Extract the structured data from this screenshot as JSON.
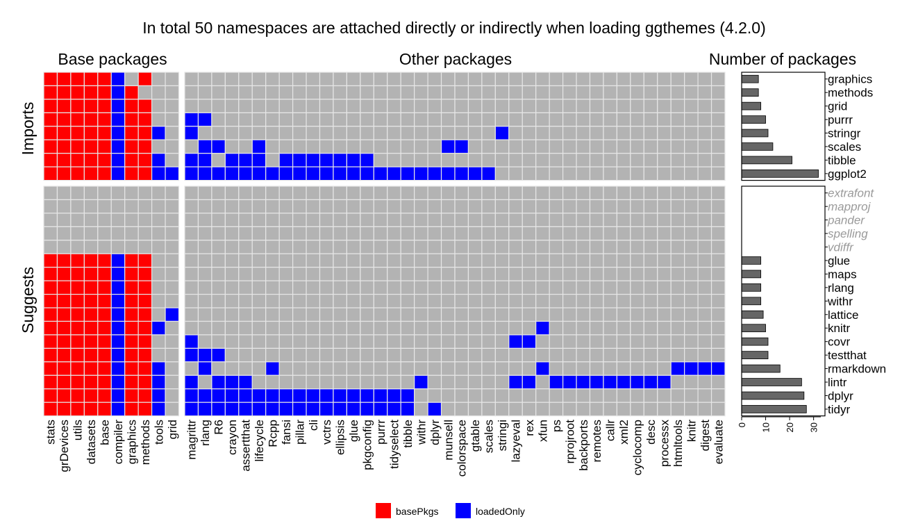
{
  "chart_data": {
    "type": "heatmap",
    "title": "In total 50 namespaces are attached directly or indirectly when loading ggthemes (4.2.0)",
    "panels": {
      "base": "Base packages",
      "other": "Other packages",
      "count": "Number of packages"
    },
    "row_groups": [
      "Imports",
      "Suggests"
    ],
    "base_packages": [
      "stats",
      "grDevices",
      "utils",
      "datasets",
      "base",
      "compiler",
      "graphics",
      "methods",
      "tools",
      "grid"
    ],
    "other_packages": [
      "magrittr",
      "rlang",
      "R6",
      "crayon",
      "assertthat",
      "lifecycle",
      "Rcpp",
      "fansi",
      "pillar",
      "cli",
      "vctrs",
      "ellipsis",
      "glue",
      "pkgconfig",
      "purrr",
      "tidyselect",
      "tibble",
      "withr",
      "dplyr",
      "munsell",
      "colorspace",
      "gtable",
      "scales",
      "stringi",
      "lazyeval",
      "rex",
      "xfun",
      "ps",
      "rprojroot",
      "backports",
      "remotes",
      "callr",
      "xml2",
      "cyclocomp",
      "desc",
      "processx",
      "htmltools",
      "knitr",
      "digest",
      "evaluate"
    ],
    "colors": {
      "basePkgs": "#ff0000",
      "loadedOnly": "#0000ff",
      "none": "#b3b3b3",
      "bar": "#666666"
    },
    "legend": [
      {
        "label": "basePkgs",
        "color": "#ff0000"
      },
      {
        "label": "loadedOnly",
        "color": "#0000ff"
      }
    ],
    "legend_position": "bottom",
    "count_axis": {
      "ticks": [
        0,
        10,
        20,
        30
      ],
      "xlim": [
        0,
        33
      ]
    },
    "imports": [
      {
        "pkg": "graphics",
        "count": 7,
        "muted": false,
        "base": "BBBBBLxB..",
        "other": ""
      },
      {
        "pkg": "methods",
        "count": 7,
        "muted": false,
        "base": "BBBBBLB...",
        "other": ""
      },
      {
        "pkg": "grid",
        "count": 8,
        "muted": false,
        "base": "BBBBBLBB..",
        "other": ""
      },
      {
        "pkg": "purrr",
        "count": 10,
        "muted": false,
        "base": "BBBBBLBB..",
        "other": "LL"
      },
      {
        "pkg": "stringr",
        "count": 11,
        "muted": false,
        "base": "BBBBBLBBL.",
        "other": "L......................L"
      },
      {
        "pkg": "scales",
        "count": 13,
        "muted": false,
        "base": "BBBBBLBB..",
        "other": ".LL..L.............LL"
      },
      {
        "pkg": "tibble",
        "count": 21,
        "muted": false,
        "base": "BBBBBLBBL.",
        "other": "LL.LLL.LLLLLLL"
      },
      {
        "pkg": "ggplot2",
        "count": 32,
        "muted": false,
        "base": "BBBBBLBBLL",
        "other": "LLLLLLLLLLLLLLLLLLLLLLL"
      }
    ],
    "suggests": [
      {
        "pkg": "extrafont",
        "count": 0,
        "muted": true,
        "base": "..........",
        "other": ""
      },
      {
        "pkg": "mapproj",
        "count": 0,
        "muted": true,
        "base": "..........",
        "other": ""
      },
      {
        "pkg": "pander",
        "count": 0,
        "muted": true,
        "base": "..........",
        "other": ""
      },
      {
        "pkg": "spelling",
        "count": 0,
        "muted": true,
        "base": "..........",
        "other": ""
      },
      {
        "pkg": "vdiffr",
        "count": 0,
        "muted": true,
        "base": "..........",
        "other": ""
      },
      {
        "pkg": "glue",
        "count": 8,
        "muted": false,
        "base": "BBBBBLBB..",
        "other": ""
      },
      {
        "pkg": "maps",
        "count": 8,
        "muted": false,
        "base": "BBBBBLBB..",
        "other": ""
      },
      {
        "pkg": "rlang",
        "count": 8,
        "muted": false,
        "base": "BBBBBLBB..",
        "other": ""
      },
      {
        "pkg": "withr",
        "count": 8,
        "muted": false,
        "base": "BBBBBLBB..",
        "other": ""
      },
      {
        "pkg": "lattice",
        "count": 9,
        "muted": false,
        "base": "BBBBBLBB.L",
        "other": ""
      },
      {
        "pkg": "knitr",
        "count": 10,
        "muted": false,
        "base": "BBBBBLBBL.",
        "other": "..........................L"
      },
      {
        "pkg": "covr",
        "count": 11,
        "muted": false,
        "base": "BBBBBLBB..",
        "other": "L.......................LL"
      },
      {
        "pkg": "testthat",
        "count": 11,
        "muted": false,
        "base": "BBBBBLBB..",
        "other": "LLL"
      },
      {
        "pkg": "rmarkdown",
        "count": 16,
        "muted": false,
        "base": "BBBBBLBBL.",
        "other": ".L....L...................L.........LLLL"
      },
      {
        "pkg": "lintr",
        "count": 25,
        "muted": false,
        "base": "BBBBBLBBL.",
        "other": "L.LLL............L......LL.LLLLLLLLL"
      },
      {
        "pkg": "dplyr",
        "count": 26,
        "muted": false,
        "base": "BBBBBLBBL.",
        "other": "LLLLLLLLLLLLLLLLL"
      },
      {
        "pkg": "tidyr",
        "count": 27,
        "muted": false,
        "base": "BBBBBLBBL.",
        "other": "LLLLLLLLLLLLLLLLL.L"
      }
    ]
  }
}
